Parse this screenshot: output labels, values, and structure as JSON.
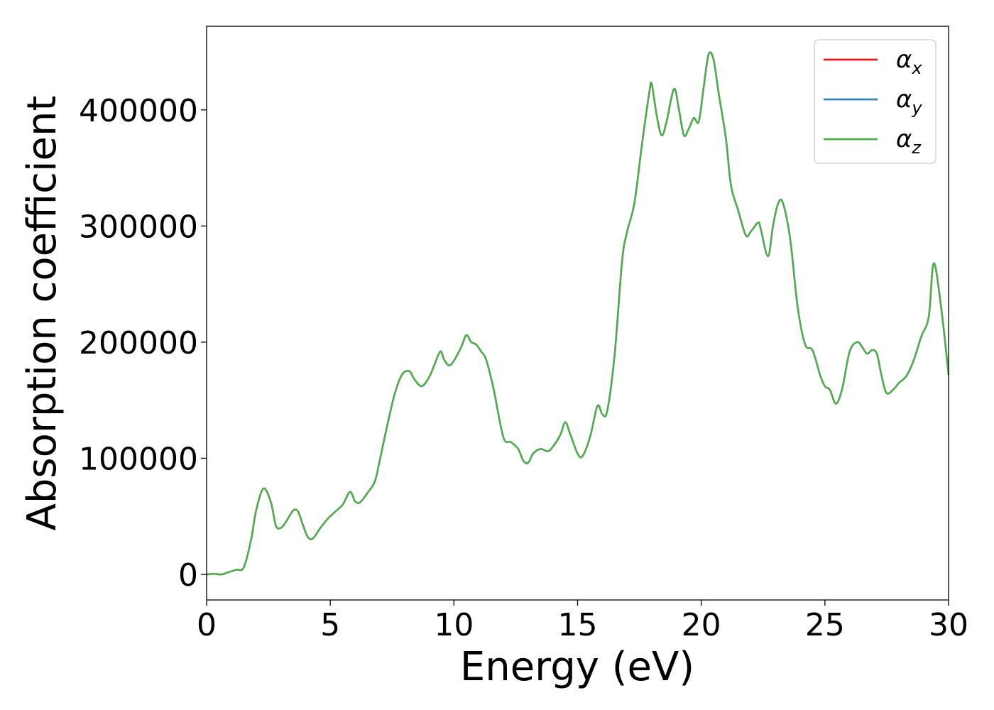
{
  "chart_data": {
    "type": "line",
    "title": "",
    "xlabel": "Energy (eV)",
    "ylabel": "Absorption coefficient",
    "xlim": [
      0,
      30
    ],
    "ylim": [
      -22000,
      472000
    ],
    "xticks": [
      0,
      5,
      10,
      15,
      20,
      25,
      30
    ],
    "xtick_labels": [
      "0",
      "5",
      "10",
      "15",
      "20",
      "25",
      "30"
    ],
    "yticks": [
      0,
      100000,
      200000,
      300000,
      400000
    ],
    "ytick_labels": [
      "0",
      "100000",
      "200000",
      "300000",
      "400000"
    ],
    "grid": false,
    "legend_position": "top-right",
    "series": [
      {
        "name": "α_x",
        "legend_symbol": "α",
        "legend_sub": "x",
        "color": "#e41a1c",
        "x": [
          0,
          0.3,
          0.6,
          0.9,
          1.2,
          1.5,
          1.8,
          2.0,
          2.3,
          2.6,
          2.8,
          3.0,
          3.2,
          3.5,
          3.7,
          3.9,
          4.1,
          4.3,
          4.6,
          4.9,
          5.2,
          5.5,
          5.8,
          6.0,
          6.2,
          6.5,
          6.8,
          7.0,
          7.3,
          7.6,
          7.9,
          8.2,
          8.4,
          8.7,
          9.0,
          9.2,
          9.45,
          9.6,
          9.8,
          10.0,
          10.3,
          10.5,
          10.7,
          10.9,
          11.1,
          11.3,
          11.6,
          12.0,
          12.3,
          12.6,
          12.8,
          13.0,
          13.2,
          13.5,
          13.8,
          14.0,
          14.3,
          14.5,
          14.7,
          15.0,
          15.2,
          15.5,
          15.8,
          16.0,
          16.2,
          16.5,
          16.8,
          17.0,
          17.3,
          17.6,
          17.9,
          18.0,
          18.2,
          18.4,
          18.6,
          18.9,
          19.1,
          19.3,
          19.5,
          19.7,
          19.9,
          20.1,
          20.3,
          20.5,
          20.7,
          21.0,
          21.2,
          21.5,
          21.8,
          22.0,
          22.3,
          22.4,
          22.7,
          22.9,
          23.1,
          23.3,
          23.6,
          23.9,
          24.2,
          24.5,
          24.8,
          25.0,
          25.2,
          25.45,
          25.7,
          26.0,
          26.3,
          26.5,
          26.7,
          26.9,
          27.1,
          27.3,
          27.5,
          27.8,
          28.0,
          28.3,
          28.6,
          28.9,
          29.2,
          29.4,
          29.7,
          30.0
        ],
        "y": [
          0,
          500,
          0,
          2000,
          4000,
          6000,
          30000,
          55000,
          74000,
          62000,
          42000,
          40000,
          45000,
          55000,
          54000,
          42000,
          32000,
          31000,
          40000,
          48000,
          54000,
          60000,
          71000,
          63000,
          62000,
          70000,
          80000,
          98000,
          128000,
          155000,
          172000,
          175000,
          168000,
          162000,
          170000,
          180000,
          192000,
          185000,
          180000,
          184000,
          196000,
          206000,
          200000,
          198000,
          192000,
          185000,
          160000,
          118000,
          114000,
          108000,
          98000,
          96000,
          104000,
          108000,
          106000,
          110000,
          120000,
          131000,
          121000,
          104000,
          102000,
          118000,
          145000,
          138000,
          141000,
          190000,
          270000,
          295000,
          320000,
          370000,
          415000,
          422000,
          395000,
          378000,
          390000,
          418000,
          400000,
          378000,
          384000,
          393000,
          390000,
          420000,
          448000,
          443000,
          415000,
          375000,
          335000,
          313000,
          292000,
          295000,
          303000,
          298000,
          274000,
          300000,
          319000,
          320000,
          288000,
          230000,
          198000,
          193000,
          172000,
          162000,
          159000,
          147000,
          160000,
          192000,
          200000,
          196000,
          190000,
          193000,
          190000,
          170000,
          156000,
          160000,
          165000,
          171000,
          185000,
          205000,
          222000,
          268000,
          230000,
          172000
        ]
      },
      {
        "name": "α_y",
        "legend_symbol": "α",
        "legend_sub": "y",
        "color": "#377eb8",
        "same_as": "α_x"
      },
      {
        "name": "α_z",
        "legend_symbol": "α",
        "legend_sub": "z",
        "color": "#4daf4a",
        "same_as": "α_x"
      }
    ]
  }
}
